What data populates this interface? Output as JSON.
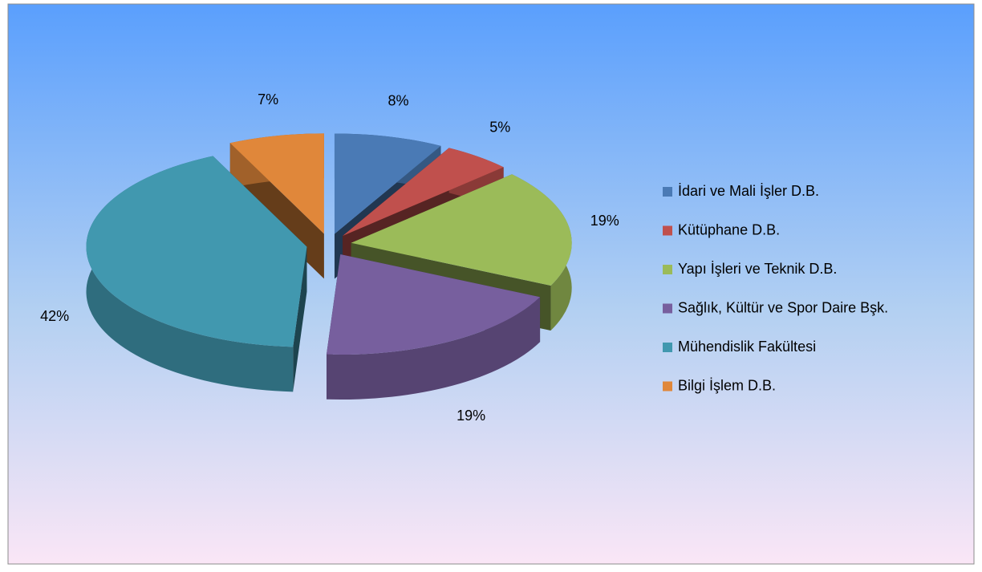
{
  "chart_data": {
    "type": "pie",
    "categories": [
      "İdari ve Mali İşler D.B.",
      "Kütüphane D.B.",
      "Yapı İşleri ve Teknik D.B.",
      "Sağlık, Kültür ve Spor Daire Bşk.",
      "Mühendislik Fakültesi",
      "Bilgi İşlem D.B."
    ],
    "values": [
      8,
      5,
      19,
      19,
      42,
      7
    ],
    "value_labels": [
      "8%",
      "5%",
      "19%",
      "19%",
      "42%",
      "7%"
    ],
    "colors": [
      "#4a7ab5",
      "#c0504d",
      "#9bbb59",
      "#775f9e",
      "#4198af",
      "#e0873a"
    ],
    "legend": "right"
  }
}
